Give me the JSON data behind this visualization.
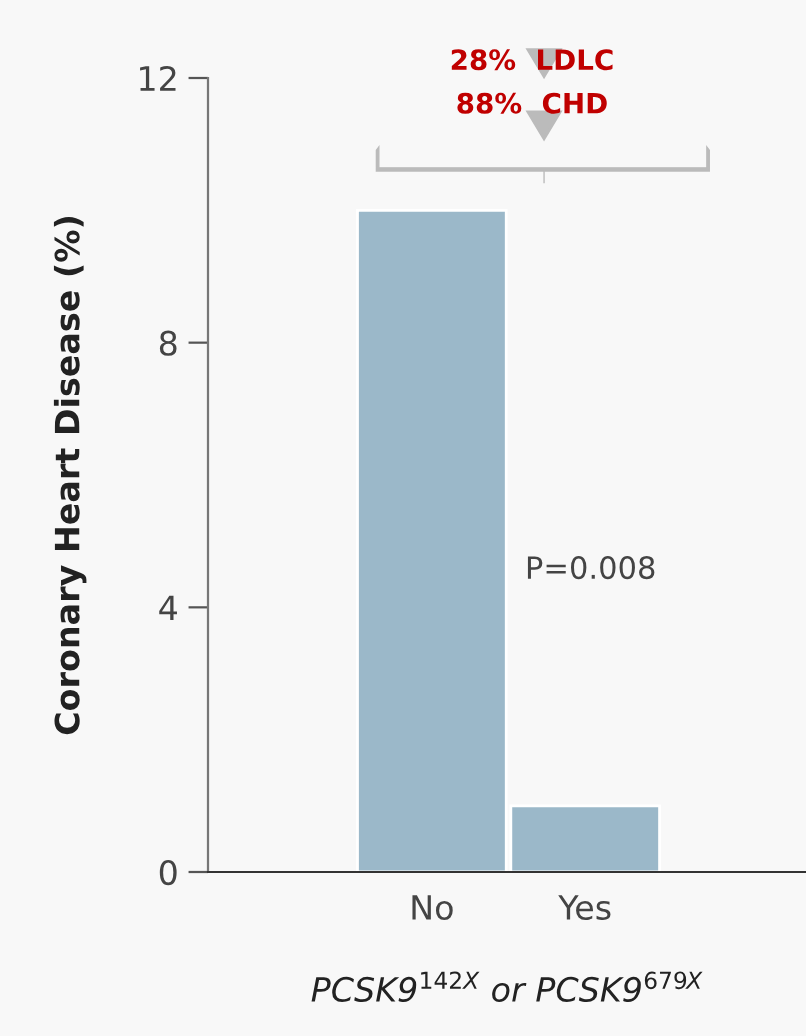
{
  "chart_data": {
    "type": "bar",
    "categories": [
      "No",
      "Yes"
    ],
    "values": [
      10,
      1.0
    ],
    "color": "#9bb8c9",
    "ylabel": "Coronary Heart Disease (%)",
    "xlabel": "PCSK9$^{142X}$ or PCSK9$^{679X}$",
    "ylim": [
      0,
      12
    ],
    "yticks": [
      0,
      4,
      8,
      12
    ],
    "annotations": [
      "28%  LDLC",
      "88%  CHD",
      "P=0.008"
    ],
    "grid": false,
    "legend": false
  }
}
